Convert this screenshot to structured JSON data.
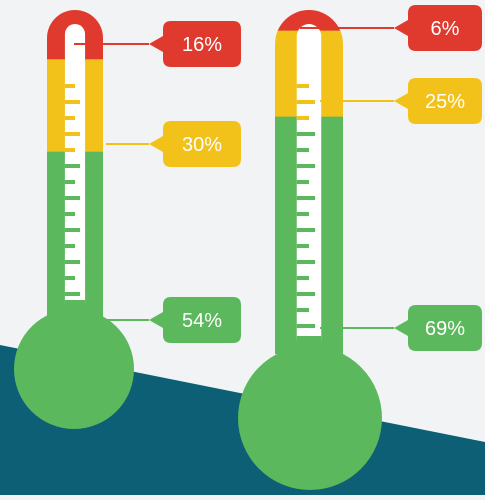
{
  "colors": {
    "background": "#f1f3f4",
    "ground": "#0c5f74",
    "red": "#e03a2e",
    "yellow": "#f2c21b",
    "green": "#5cb85c",
    "white": "#ffffff"
  },
  "chart_data": [
    {
      "type": "bar",
      "style": "thermometer",
      "unit": "%",
      "series": [
        {
          "name": "",
          "color": "#e03a2e",
          "value": 16,
          "label": "16%"
        },
        {
          "name": "",
          "color": "#f2c21b",
          "value": 30,
          "label": "30%"
        },
        {
          "name": "",
          "color": "#5cb85c",
          "value": 54,
          "label": "54%"
        }
      ]
    },
    {
      "type": "bar",
      "style": "thermometer",
      "unit": "%",
      "series": [
        {
          "name": "",
          "color": "#e03a2e",
          "value": 6,
          "label": "6%"
        },
        {
          "name": "",
          "color": "#f2c21b",
          "value": 25,
          "label": "25%"
        },
        {
          "name": "",
          "color": "#5cb85c",
          "value": 69,
          "label": "69%"
        }
      ]
    }
  ]
}
